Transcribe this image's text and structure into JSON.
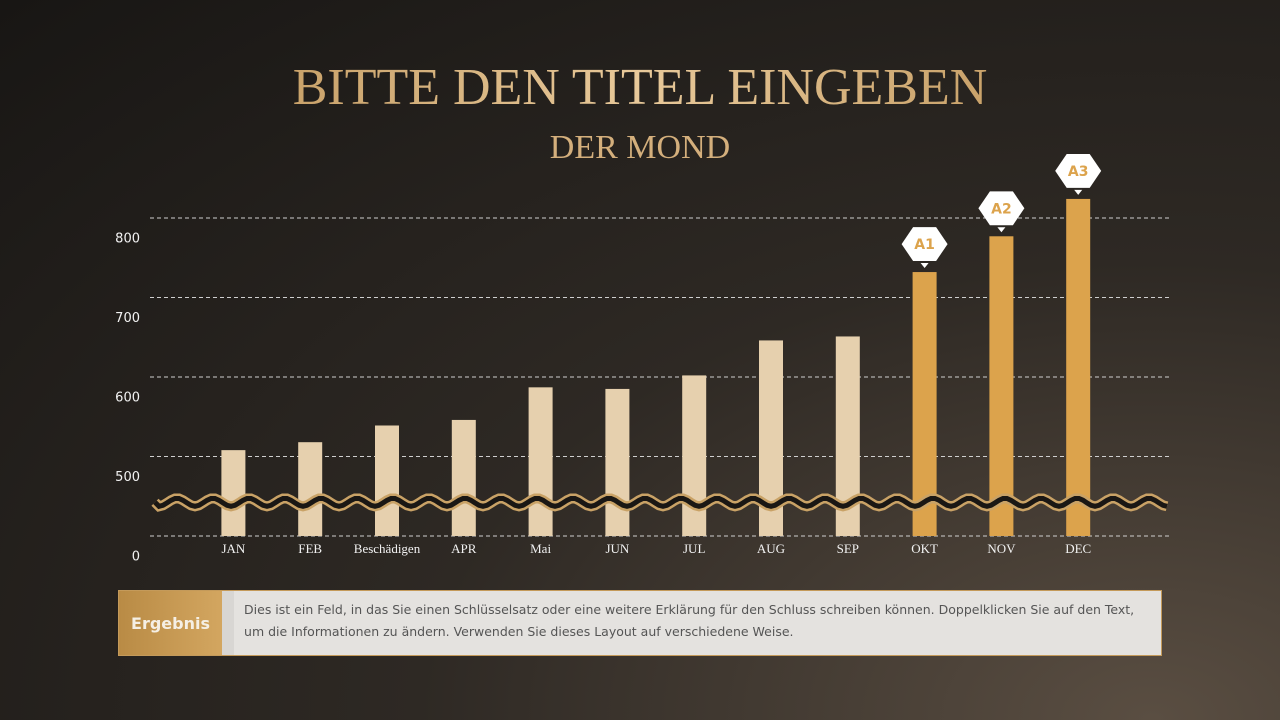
{
  "chart_data": {
    "type": "bar",
    "title": "BITTE DEN TITEL EINGEBEN",
    "subtitle": "DER MOND",
    "categories": [
      "JAN",
      "FEB",
      "Beschädigen",
      "APR",
      "Mai",
      "JUN",
      "JUL",
      "AUG",
      "SEP",
      "OKT",
      "NOV",
      "DEC"
    ],
    "values": [
      508,
      518,
      539,
      546,
      587,
      585,
      602,
      646,
      651,
      732,
      777,
      824
    ],
    "color": "#e6d0ae",
    "highlight_color": "#dca34c",
    "annotations": [
      null,
      null,
      null,
      null,
      null,
      null,
      null,
      null,
      null,
      "A1",
      "A2",
      "A3"
    ],
    "ylim": [
      0,
      850
    ],
    "yticks": [
      0,
      500,
      600,
      700,
      800
    ],
    "grid": true,
    "axis_break": [
      0,
      500
    ]
  },
  "result": {
    "label": "Ergebnis",
    "text": "Dies ist ein Feld, in das Sie einen Schlüsselsatz oder eine weitere Erklärung für den Schluss schreiben können. Doppelklicken Sie auf den Text, um die Informationen zu ändern. Verwenden Sie dieses Layout auf verschiedene Weise."
  }
}
